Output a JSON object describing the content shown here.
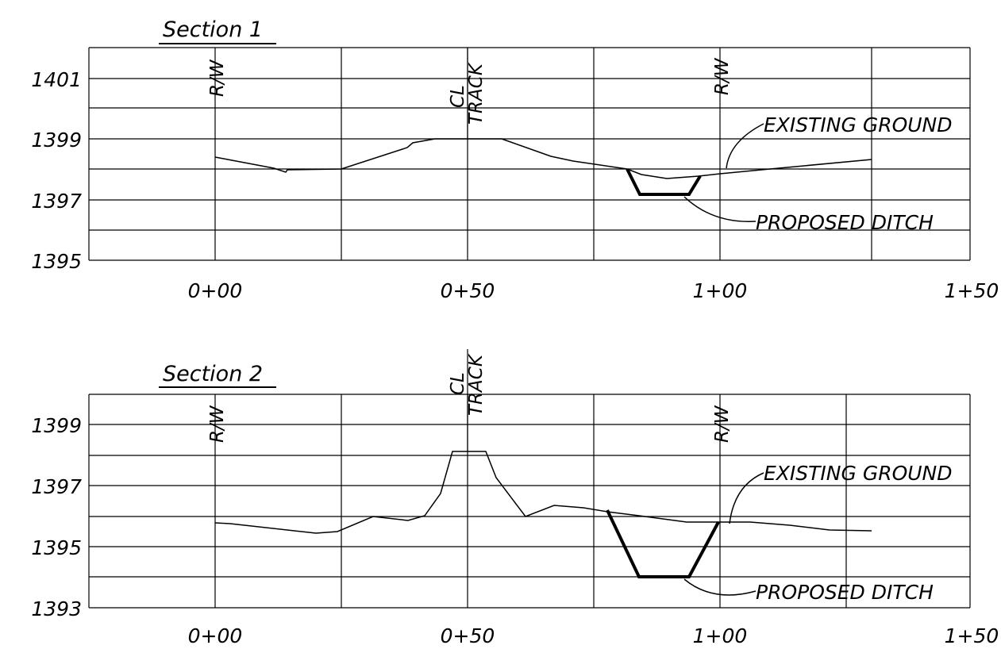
{
  "sections": [
    {
      "title": "Section 1",
      "y_ticks": [
        "1401",
        "1399",
        "1397",
        "1395"
      ],
      "x_ticks": [
        "0+00",
        "0+50",
        "1+00",
        "1+50"
      ],
      "row_left": "R/W",
      "row_right": "R/W",
      "cl_line1": "CL",
      "cl_line2": "TRACK",
      "existing_label": "EXISTING GROUND",
      "ditch_label": "PROPOSED DITCH"
    },
    {
      "title": "Section 2",
      "y_ticks": [
        "1399",
        "1397",
        "1395",
        "1393"
      ],
      "x_ticks": [
        "0+00",
        "0+50",
        "1+00",
        "1+50"
      ],
      "row_left": "R/W",
      "row_right": "R/W",
      "cl_line1": "CL",
      "cl_line2": "TRACK",
      "existing_label": "EXISTING GROUND",
      "ditch_label": "PROPOSED DITCH"
    }
  ]
}
